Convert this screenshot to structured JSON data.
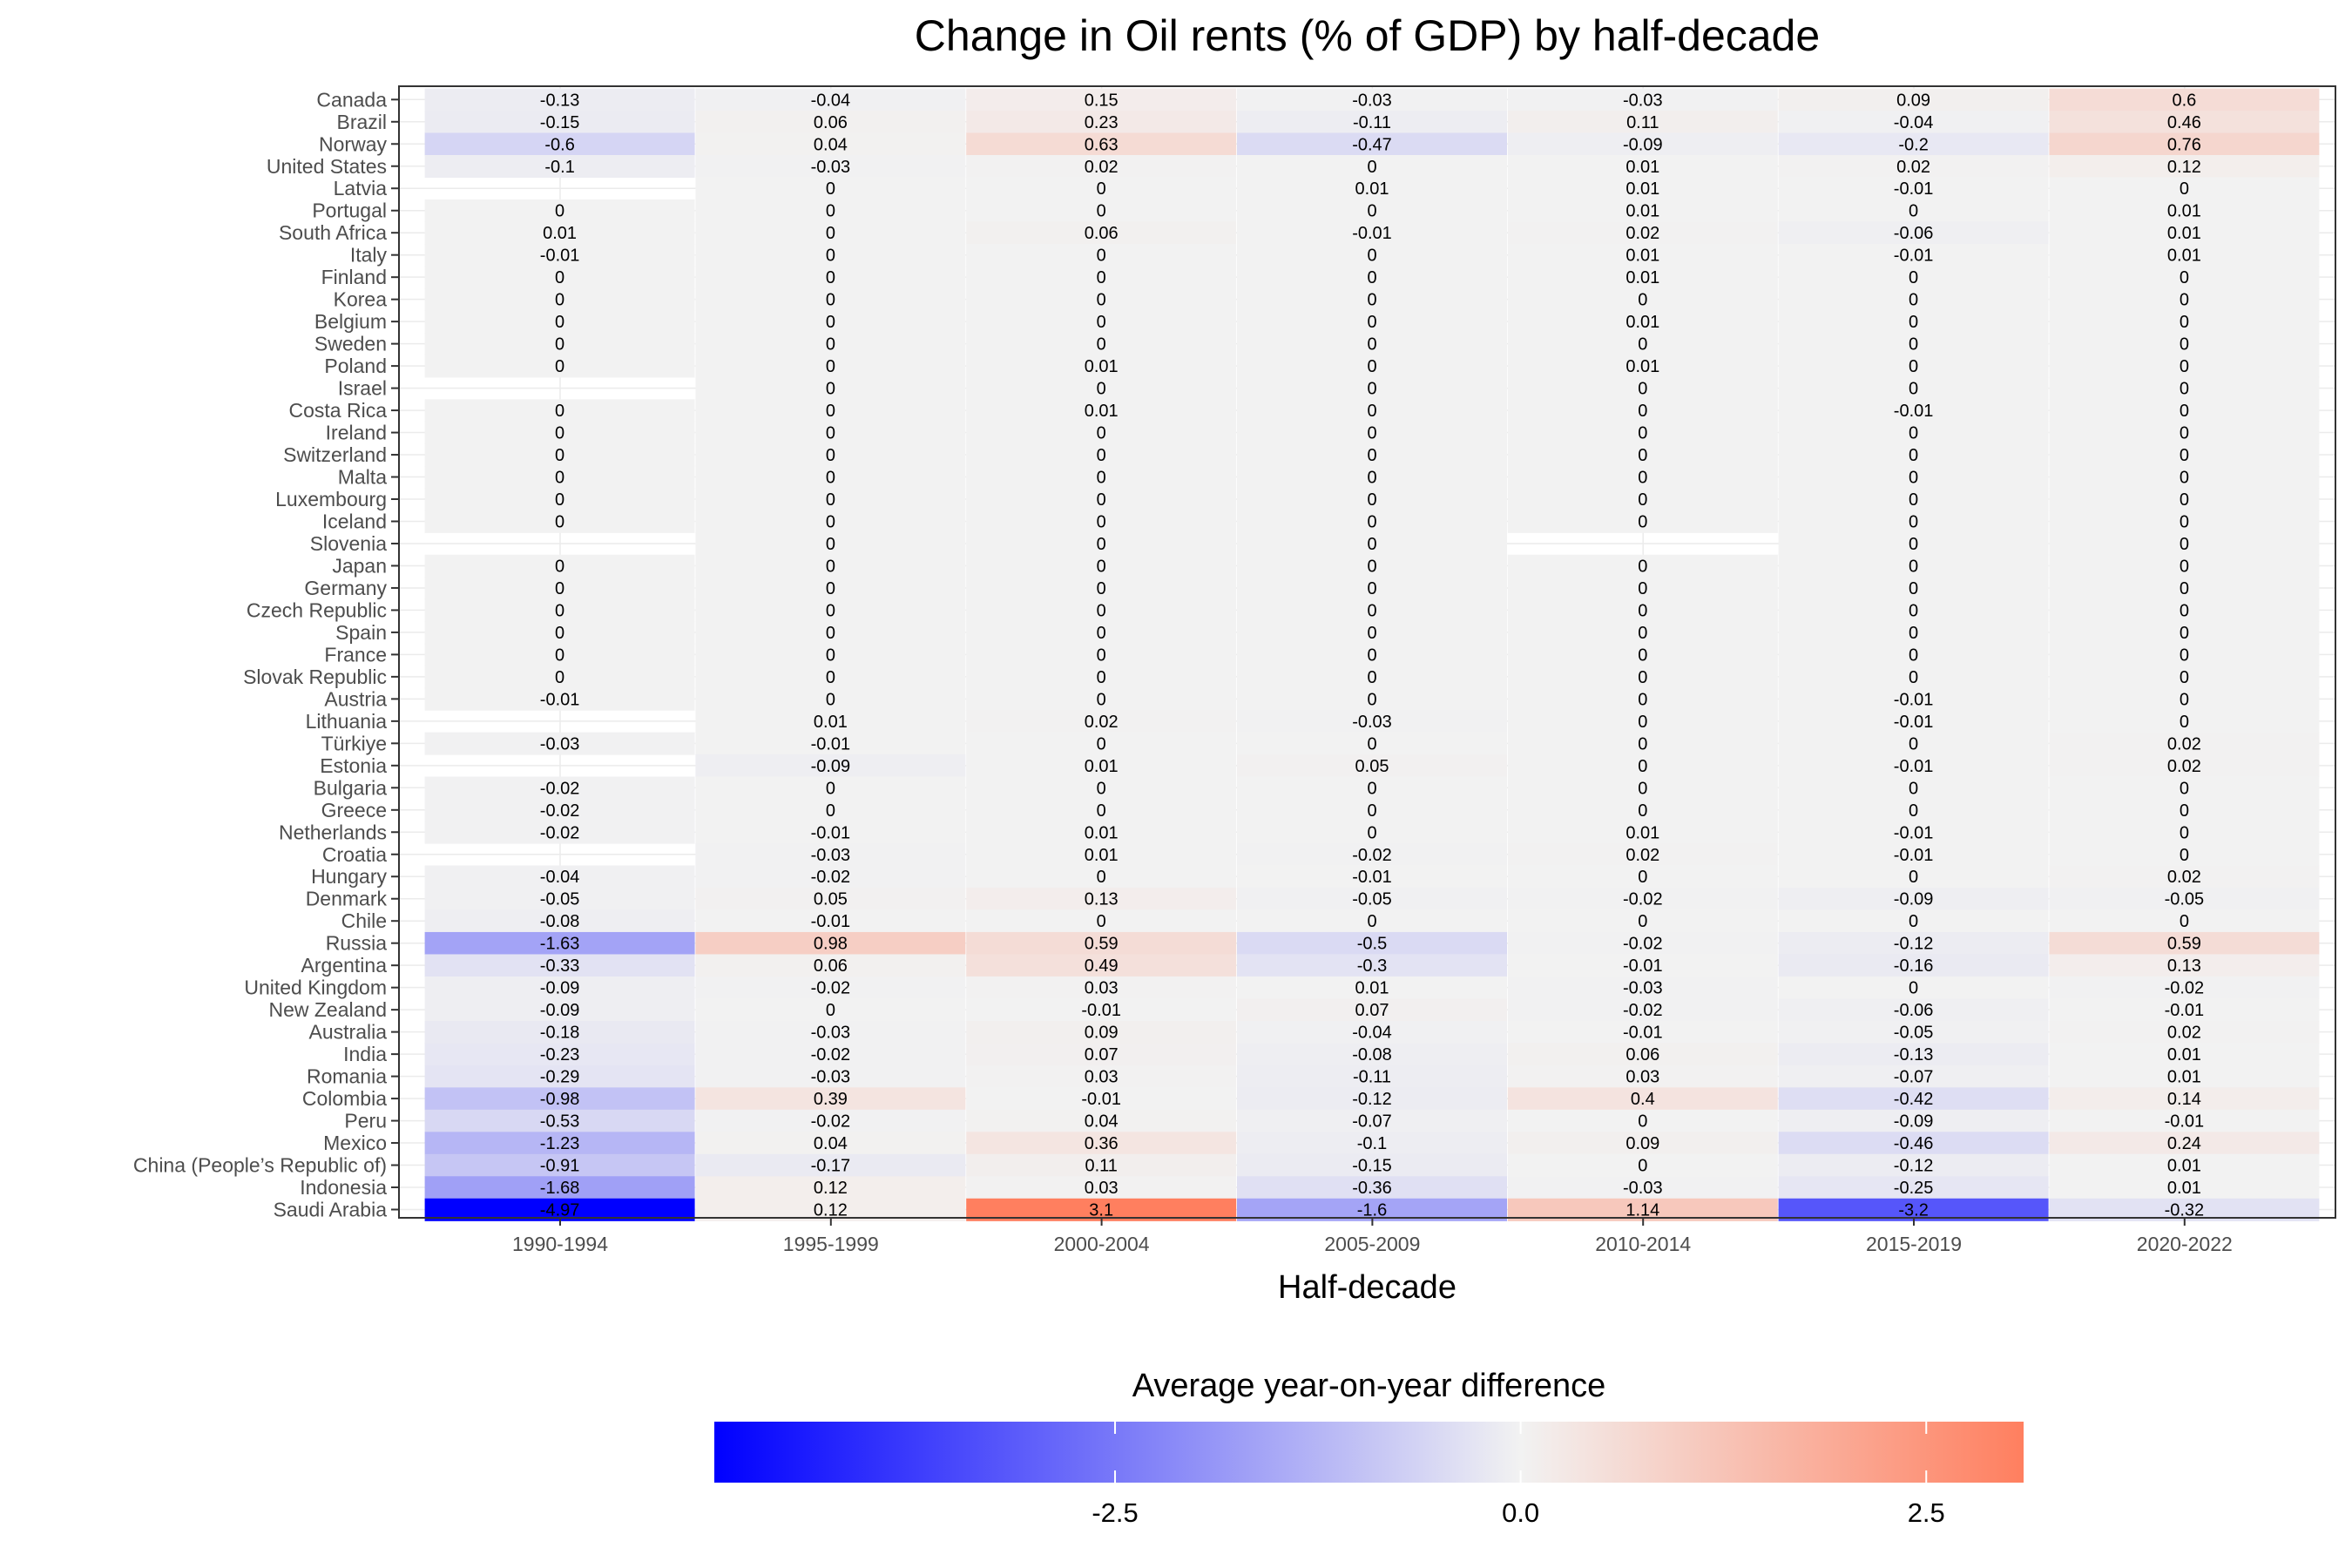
{
  "chart_data": {
    "type": "heatmap",
    "title": "Change in Oil rents (% of GDP) by half-decade",
    "xlabel": "Half-decade",
    "ylabel": "",
    "x": [
      "1990-1994",
      "1995-1999",
      "2000-2004",
      "2005-2009",
      "2010-2014",
      "2015-2019",
      "2020-2022"
    ],
    "y": [
      "Canada",
      "Brazil",
      "Norway",
      "United States",
      "Latvia",
      "Portugal",
      "South Africa",
      "Italy",
      "Finland",
      "Korea",
      "Belgium",
      "Sweden",
      "Poland",
      "Israel",
      "Costa Rica",
      "Ireland",
      "Switzerland",
      "Malta",
      "Luxembourg",
      "Iceland",
      "Slovenia",
      "Japan",
      "Germany",
      "Czech Republic",
      "Spain",
      "France",
      "Slovak Republic",
      "Austria",
      "Lithuania",
      "Türkiye",
      "Estonia",
      "Bulgaria",
      "Greece",
      "Netherlands",
      "Croatia",
      "Hungary",
      "Denmark",
      "Chile",
      "Russia",
      "Argentina",
      "United Kingdom",
      "New Zealand",
      "Australia",
      "India",
      "Romania",
      "Colombia",
      "Peru",
      "Mexico",
      "China (People’s Republic of)",
      "Indonesia",
      "Saudi Arabia"
    ],
    "values": [
      [
        -0.13,
        -0.04,
        0.15,
        -0.03,
        -0.03,
        0.09,
        0.6
      ],
      [
        -0.15,
        0.06,
        0.23,
        -0.11,
        0.11,
        -0.04,
        0.46
      ],
      [
        -0.6,
        0.04,
        0.63,
        -0.47,
        -0.09,
        -0.2,
        0.76
      ],
      [
        -0.1,
        -0.03,
        0.02,
        0,
        0.01,
        0.02,
        0.12
      ],
      [
        null,
        0,
        0,
        0.01,
        0.01,
        -0.01,
        0
      ],
      [
        0,
        0,
        0,
        0,
        0.01,
        0,
        0.01
      ],
      [
        0.01,
        0,
        0.06,
        -0.01,
        0.02,
        -0.06,
        0.01
      ],
      [
        -0.01,
        0,
        0,
        0,
        0.01,
        -0.01,
        0.01
      ],
      [
        0,
        0,
        0,
        0,
        0.01,
        0,
        0
      ],
      [
        0,
        0,
        0,
        0,
        0,
        0,
        0
      ],
      [
        0,
        0,
        0,
        0,
        0.01,
        0,
        0
      ],
      [
        0,
        0,
        0,
        0,
        0,
        0,
        0
      ],
      [
        0,
        0,
        0.01,
        0,
        0.01,
        0,
        0
      ],
      [
        null,
        0,
        0,
        0,
        0,
        0,
        0
      ],
      [
        0,
        0,
        0.01,
        0,
        0,
        -0.01,
        0
      ],
      [
        0,
        0,
        0,
        0,
        0,
        0,
        0
      ],
      [
        0,
        0,
        0,
        0,
        0,
        0,
        0
      ],
      [
        0,
        0,
        0,
        0,
        0,
        0,
        0
      ],
      [
        0,
        0,
        0,
        0,
        0,
        0,
        0
      ],
      [
        0,
        0,
        0,
        0,
        0,
        0,
        0
      ],
      [
        null,
        0,
        0,
        0,
        null,
        0,
        0
      ],
      [
        0,
        0,
        0,
        0,
        0,
        0,
        0
      ],
      [
        0,
        0,
        0,
        0,
        0,
        0,
        0
      ],
      [
        0,
        0,
        0,
        0,
        0,
        0,
        0
      ],
      [
        0,
        0,
        0,
        0,
        0,
        0,
        0
      ],
      [
        0,
        0,
        0,
        0,
        0,
        0,
        0
      ],
      [
        0,
        0,
        0,
        0,
        0,
        0,
        0
      ],
      [
        -0.01,
        0,
        0,
        0,
        0,
        -0.01,
        0
      ],
      [
        null,
        0.01,
        0.02,
        -0.03,
        0,
        -0.01,
        0
      ],
      [
        -0.03,
        -0.01,
        0,
        0,
        0,
        0,
        0.02
      ],
      [
        null,
        -0.09,
        0.01,
        0.05,
        0,
        -0.01,
        0.02
      ],
      [
        -0.02,
        0,
        0,
        0,
        0,
        0,
        0
      ],
      [
        -0.02,
        0,
        0,
        0,
        0,
        0,
        0
      ],
      [
        -0.02,
        -0.01,
        0.01,
        0,
        0.01,
        -0.01,
        0
      ],
      [
        null,
        -0.03,
        0.01,
        -0.02,
        0.02,
        -0.01,
        0
      ],
      [
        -0.04,
        -0.02,
        0,
        -0.01,
        0,
        0,
        0.02
      ],
      [
        -0.05,
        0.05,
        0.13,
        -0.05,
        -0.02,
        -0.09,
        -0.05
      ],
      [
        -0.08,
        -0.01,
        0,
        0,
        0,
        0,
        0
      ],
      [
        -1.63,
        0.98,
        0.59,
        -0.5,
        -0.02,
        -0.12,
        0.59
      ],
      [
        -0.33,
        0.06,
        0.49,
        -0.3,
        -0.01,
        -0.16,
        0.13
      ],
      [
        -0.09,
        -0.02,
        0.03,
        0.01,
        -0.03,
        0,
        -0.02
      ],
      [
        -0.09,
        0,
        -0.01,
        0.07,
        -0.02,
        -0.06,
        -0.01
      ],
      [
        -0.18,
        -0.03,
        0.09,
        -0.04,
        -0.01,
        -0.05,
        0.02
      ],
      [
        -0.23,
        -0.02,
        0.07,
        -0.08,
        0.06,
        -0.13,
        0.01
      ],
      [
        -0.29,
        -0.03,
        0.03,
        -0.11,
        0.03,
        -0.07,
        0.01
      ],
      [
        -0.98,
        0.39,
        -0.01,
        -0.12,
        0.4,
        -0.42,
        0.14
      ],
      [
        -0.53,
        -0.02,
        0.04,
        -0.07,
        0,
        -0.09,
        -0.01
      ],
      [
        -1.23,
        0.04,
        0.36,
        -0.1,
        0.09,
        -0.46,
        0.24
      ],
      [
        -0.91,
        -0.17,
        0.11,
        -0.15,
        0,
        -0.12,
        0.01
      ],
      [
        -1.68,
        0.12,
        0.03,
        -0.36,
        -0.03,
        -0.25,
        0.01
      ],
      [
        -4.97,
        0.12,
        3.1,
        -1.6,
        1.14,
        -3.2,
        -0.32
      ]
    ],
    "legend": {
      "title": "Average year-on-year difference",
      "position": "bottom",
      "range": [
        -4.97,
        3.1
      ],
      "ticks": [
        -2.5,
        0,
        2.5
      ],
      "tick_labels": [
        "-2.5",
        "0.0",
        "2.5"
      ],
      "colors": {
        "low": "#0000ff",
        "mid": "#f2f2f2",
        "high": "#ff7f5f"
      }
    },
    "grid": true
  }
}
